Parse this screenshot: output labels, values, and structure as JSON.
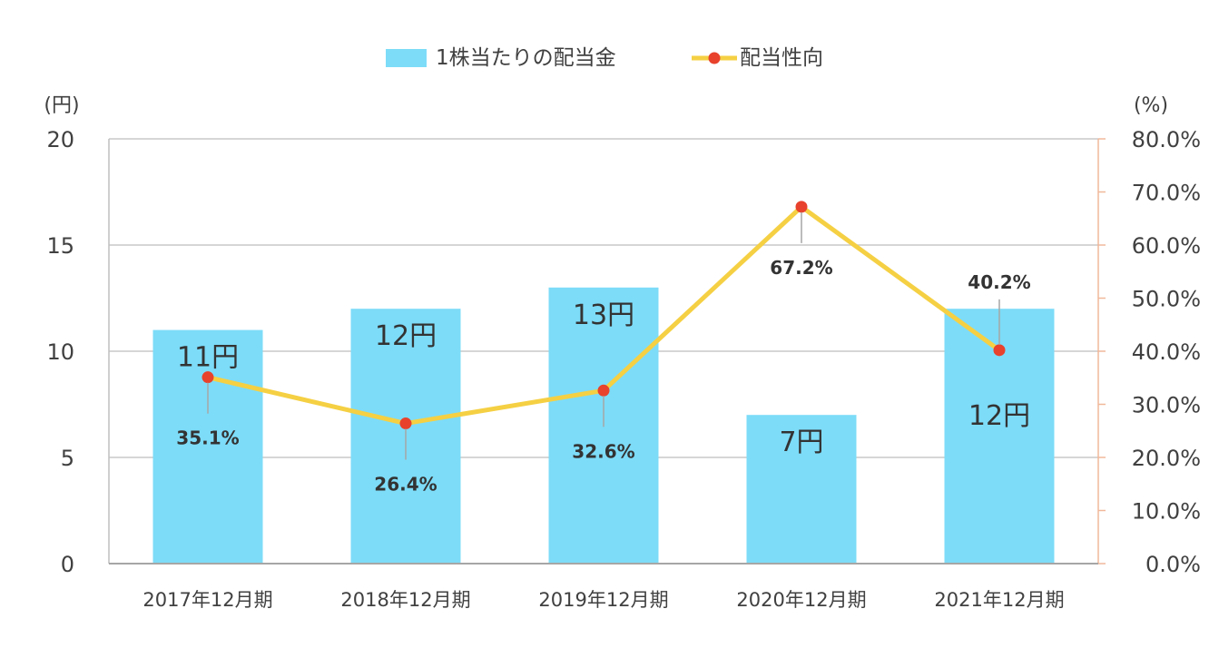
{
  "chart_data": {
    "type": "bar",
    "categories": [
      "2017年12月期",
      "2018年12月期",
      "2019年12月期",
      "2020年12月期",
      "2021年12月期"
    ],
    "series": [
      {
        "name": "1株当たりの配当金",
        "type": "bar",
        "axis": "left",
        "values": [
          11,
          12,
          13,
          7,
          12
        ],
        "labels": [
          "11円",
          "12円",
          "13円",
          "7円",
          "12円"
        ],
        "color": "#7ddcf8"
      },
      {
        "name": "配当性向",
        "type": "line",
        "axis": "right",
        "values": [
          35.1,
          26.4,
          32.6,
          67.2,
          40.2
        ],
        "labels": [
          "35.1%",
          "26.4%",
          "32.6%",
          "67.2%",
          "40.2%"
        ],
        "color": "#f5d043",
        "marker_color": "#e8412c"
      }
    ],
    "left_axis": {
      "unit_label": "(円)",
      "ylim": [
        0,
        20
      ],
      "ticks": [
        0,
        5,
        10,
        15,
        20
      ],
      "tick_labels": [
        "0",
        "5",
        "10",
        "15",
        "20"
      ]
    },
    "right_axis": {
      "unit_label": "(%)",
      "ylim": [
        0,
        80
      ],
      "ticks": [
        0,
        10,
        20,
        30,
        40,
        50,
        60,
        70,
        80
      ],
      "tick_labels": [
        "0.0%",
        "10.0%",
        "20.0%",
        "30.0%",
        "40.0%",
        "50.0%",
        "60.0%",
        "70.0%",
        "80.0%"
      ],
      "color": "#f0b89a"
    },
    "grid": true,
    "grid_color": "#c8c8c8",
    "legend_position": "top-center"
  }
}
